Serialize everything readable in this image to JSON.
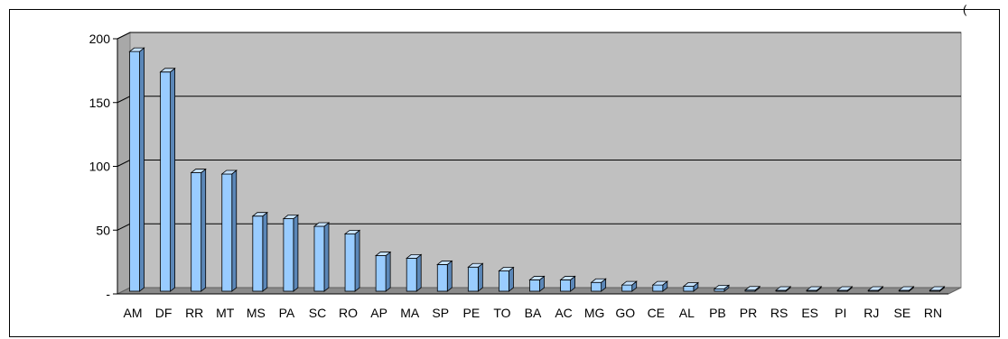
{
  "corner_note": "(",
  "chart_data": {
    "type": "bar",
    "style": "3d-column",
    "title": "",
    "xlabel": "",
    "ylabel": "",
    "categories": [
      "AM",
      "DF",
      "RR",
      "MT",
      "MS",
      "PA",
      "SC",
      "RO",
      "AP",
      "MA",
      "SP",
      "PE",
      "TO",
      "BA",
      "AC",
      "MG",
      "GO",
      "CE",
      "AL",
      "PB",
      "PR",
      "RS",
      "ES",
      "PI",
      "RJ",
      "SE",
      "RN"
    ],
    "values": [
      190,
      174,
      95,
      94,
      61,
      59,
      53,
      47,
      30,
      28,
      23,
      21,
      18,
      11,
      11,
      9,
      7,
      7,
      6,
      4,
      3,
      2,
      2,
      1,
      1,
      0,
      0
    ],
    "ylim": [
      0,
      200
    ],
    "yticks": [
      0,
      50,
      100,
      150,
      200
    ],
    "ytick_labels": [
      "-",
      "50",
      "100",
      "150",
      "200"
    ],
    "grid": true,
    "legend": "none",
    "colors": {
      "bar_face": "#99CCFF",
      "bar_side": "#5B87B8",
      "bar_top": "#C6E2FF",
      "wall": "#C0C0C0",
      "floor": "#8A8A8A",
      "gridline": "#000000"
    }
  }
}
